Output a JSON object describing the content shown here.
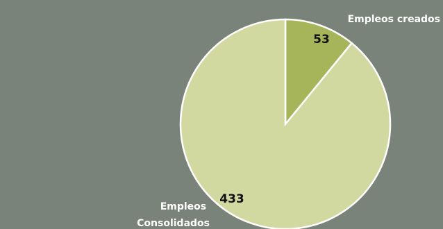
{
  "chart_data": {
    "type": "pie",
    "categories": [
      "Empleos creados",
      "Empleos Consolidados"
    ],
    "values": [
      53,
      433
    ],
    "data_labels": [
      "53",
      "433"
    ],
    "colors": [
      "#a6b45a",
      "#d1d8a0"
    ],
    "background": "#7a837a",
    "start_angle": "12 o'clock",
    "direction": "clockwise"
  }
}
